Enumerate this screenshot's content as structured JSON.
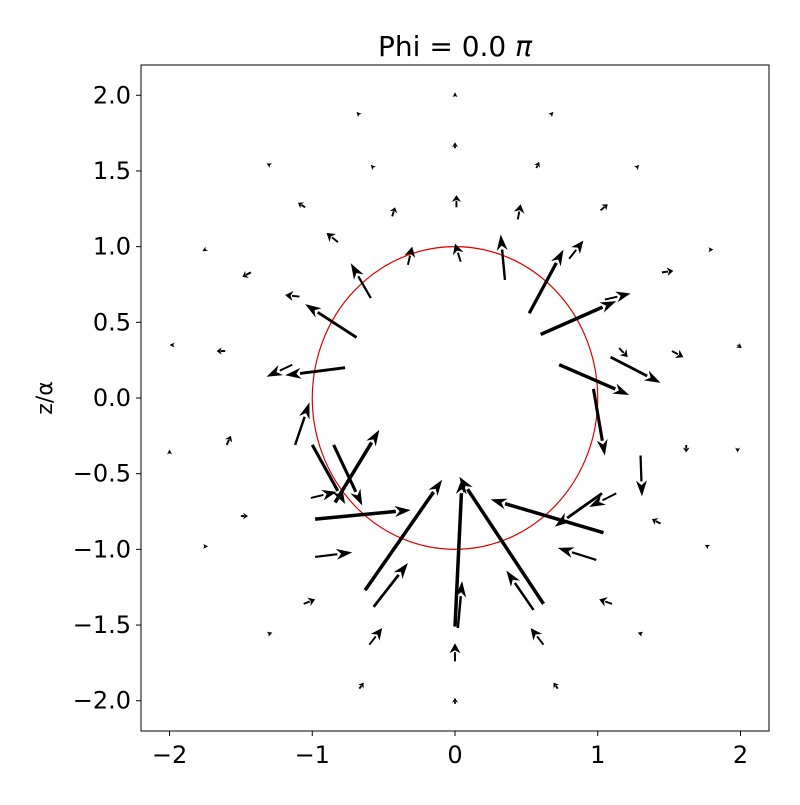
{
  "chart_data": {
    "type": "quiver",
    "title": "Phi = 0.0 ",
    "title_symbol": "π",
    "xlabel": "",
    "ylabel": "z/α",
    "xlim": [
      -2.2,
      2.2
    ],
    "ylim": [
      -2.2,
      2.2
    ],
    "xticks": [
      -2,
      -1,
      0,
      1,
      2
    ],
    "yticks": [
      -2.0,
      -1.5,
      -1.0,
      -0.5,
      0.0,
      0.5,
      1.0,
      1.5,
      2.0
    ],
    "xtick_labels": [
      "−2",
      "−1",
      "0",
      "1",
      "2"
    ],
    "ytick_labels": [
      "−2.0",
      "−1.5",
      "−1.0",
      "−0.5",
      "0.0",
      "0.5",
      "1.0",
      "1.5",
      "2.0"
    ],
    "grid": false,
    "circle": {
      "center": [
        0,
        0
      ],
      "radius": 1.0,
      "color": "#e00000"
    },
    "arrow_color": "#000000",
    "vectors": [
      {
        "x": 0.0,
        "y": -1.51,
        "u": 0.05,
        "v": 0.98
      },
      {
        "x": 0.02,
        "y": -1.52,
        "u": 0.03,
        "v": 0.31
      },
      {
        "x": 0.0,
        "y": -1.74,
        "u": 0.0,
        "v": 0.12
      },
      {
        "x": 0.0,
        "y": -2.02,
        "u": 0.0,
        "v": 0.04
      },
      {
        "x": -0.63,
        "y": -1.27,
        "u": 0.54,
        "v": 0.73
      },
      {
        "x": -0.57,
        "y": -1.38,
        "u": 0.24,
        "v": 0.29
      },
      {
        "x": 0.62,
        "y": -1.36,
        "u": -0.59,
        "v": 0.84
      },
      {
        "x": 0.55,
        "y": -1.4,
        "u": -0.19,
        "v": 0.26
      },
      {
        "x": -0.6,
        "y": -1.63,
        "u": 0.09,
        "v": 0.11
      },
      {
        "x": 0.62,
        "y": -1.63,
        "u": -0.09,
        "v": 0.11
      },
      {
        "x": -0.67,
        "y": -1.92,
        "u": 0.03,
        "v": 0.04
      },
      {
        "x": 0.72,
        "y": -1.92,
        "u": -0.03,
        "v": 0.04
      },
      {
        "x": -0.98,
        "y": -0.8,
        "u": 0.67,
        "v": 0.06
      },
      {
        "x": -0.98,
        "y": -1.05,
        "u": 0.26,
        "v": 0.03
      },
      {
        "x": 1.04,
        "y": -0.89,
        "u": -0.79,
        "v": 0.22
      },
      {
        "x": 0.99,
        "y": -1.07,
        "u": -0.27,
        "v": 0.08
      },
      {
        "x": -1.06,
        "y": -1.36,
        "u": 0.08,
        "v": 0.03
      },
      {
        "x": 1.1,
        "y": -1.36,
        "u": -0.09,
        "v": 0.03
      },
      {
        "x": -1.31,
        "y": -1.56,
        "u": 0.03,
        "v": 0.01
      },
      {
        "x": 1.31,
        "y": -1.56,
        "u": -0.03,
        "v": 0.01
      },
      {
        "x": -1.0,
        "y": -0.31,
        "u": 0.23,
        "v": -0.39
      },
      {
        "x": -1.01,
        "y": -0.66,
        "u": 0.18,
        "v": 0.04
      },
      {
        "x": -1.5,
        "y": -0.78,
        "u": 0.05,
        "v": 0.0
      },
      {
        "x": -1.75,
        "y": -0.98,
        "u": 0.02,
        "v": 0.0
      },
      {
        "x": -2.0,
        "y": -0.35,
        "u": 0.0,
        "v": 0.01
      },
      {
        "x": -1.12,
        "y": -0.31,
        "u": 0.1,
        "v": 0.28
      },
      {
        "x": -1.6,
        "y": -0.31,
        "u": 0.03,
        "v": 0.06
      },
      {
        "x": 1.03,
        "y": -0.63,
        "u": -0.33,
        "v": -0.22
      },
      {
        "x": 1.13,
        "y": -0.63,
        "u": -0.19,
        "v": -0.09
      },
      {
        "x": 1.44,
        "y": -0.83,
        "u": -0.06,
        "v": 0.03
      },
      {
        "x": 1.77,
        "y": -0.98,
        "u": -0.02,
        "v": 0.01
      },
      {
        "x": 1.3,
        "y": -0.38,
        "u": 0.01,
        "v": -0.27
      },
      {
        "x": 1.62,
        "y": -0.31,
        "u": 0.0,
        "v": -0.05
      },
      {
        "x": 1.98,
        "y": -0.35,
        "u": 0.0,
        "v": -0.01
      },
      {
        "x": -0.85,
        "y": -0.31,
        "u": 0.2,
        "v": -0.4
      },
      {
        "x": -0.84,
        "y": -0.69,
        "u": 0.31,
        "v": 0.48
      },
      {
        "x": 0.97,
        "y": 0.06,
        "u": 0.08,
        "v": -0.44
      },
      {
        "x": 0.73,
        "y": 0.22,
        "u": 0.49,
        "v": -0.2
      },
      {
        "x": 1.09,
        "y": 0.27,
        "u": 0.35,
        "v": -0.17
      },
      {
        "x": 1.15,
        "y": 0.33,
        "u": 0.06,
        "v": -0.06
      },
      {
        "x": 1.52,
        "y": 0.31,
        "u": 0.08,
        "v": -0.04
      },
      {
        "x": 1.98,
        "y": 0.35,
        "u": 0.03,
        "v": -0.02
      },
      {
        "x": -0.77,
        "y": 0.2,
        "u": -0.42,
        "v": -0.05
      },
      {
        "x": -1.14,
        "y": 0.22,
        "u": -0.18,
        "v": -0.08
      },
      {
        "x": -1.61,
        "y": 0.31,
        "u": -0.06,
        "v": 0.0
      },
      {
        "x": -1.99,
        "y": 0.35,
        "u": -0.01,
        "v": 0.0
      },
      {
        "x": -0.69,
        "y": 0.4,
        "u": -0.36,
        "v": 0.22
      },
      {
        "x": -1.09,
        "y": 0.67,
        "u": -0.1,
        "v": 0.01
      },
      {
        "x": -1.43,
        "y": 0.83,
        "u": -0.06,
        "v": -0.03
      },
      {
        "x": -1.75,
        "y": 0.98,
        "u": -0.02,
        "v": -0.01
      },
      {
        "x": 0.6,
        "y": 0.42,
        "u": 0.53,
        "v": 0.22
      },
      {
        "x": 1.05,
        "y": 0.65,
        "u": 0.18,
        "v": 0.04
      },
      {
        "x": 1.45,
        "y": 0.83,
        "u": 0.08,
        "v": 0.01
      },
      {
        "x": 1.78,
        "y": 0.98,
        "u": 0.03,
        "v": 0.0
      },
      {
        "x": -0.59,
        "y": 0.66,
        "u": -0.14,
        "v": 0.23
      },
      {
        "x": -0.82,
        "y": 1.03,
        "u": -0.08,
        "v": 0.06
      },
      {
        "x": -1.05,
        "y": 1.26,
        "u": -0.05,
        "v": 0.03
      },
      {
        "x": -1.3,
        "y": 1.54,
        "u": -0.02,
        "v": 0.01
      },
      {
        "x": 0.52,
        "y": 0.56,
        "u": 0.24,
        "v": 0.42
      },
      {
        "x": 0.8,
        "y": 0.92,
        "u": 0.1,
        "v": 0.12
      },
      {
        "x": 1.02,
        "y": 1.24,
        "u": 0.05,
        "v": 0.04
      },
      {
        "x": 1.27,
        "y": 1.52,
        "u": 0.02,
        "v": 0.02
      },
      {
        "x": -0.33,
        "y": 0.88,
        "u": 0.03,
        "v": 0.12
      },
      {
        "x": -0.44,
        "y": 1.2,
        "u": 0.02,
        "v": 0.06
      },
      {
        "x": -0.57,
        "y": 1.52,
        "u": -0.02,
        "v": 0.02
      },
      {
        "x": -0.68,
        "y": 1.88,
        "u": -0.01,
        "v": 0.01
      },
      {
        "x": 0.35,
        "y": 0.78,
        "u": -0.03,
        "v": 0.3
      },
      {
        "x": 0.44,
        "y": 1.18,
        "u": 0.02,
        "v": 0.1
      },
      {
        "x": 0.57,
        "y": 1.52,
        "u": 0.02,
        "v": 0.04
      },
      {
        "x": 0.68,
        "y": 1.88,
        "u": 0.01,
        "v": 0.01
      },
      {
        "x": 0.04,
        "y": 0.9,
        "u": -0.04,
        "v": 0.12
      },
      {
        "x": 0.01,
        "y": 1.26,
        "u": 0.0,
        "v": 0.08
      },
      {
        "x": 0.0,
        "y": 1.65,
        "u": 0.0,
        "v": 0.04
      },
      {
        "x": 0.0,
        "y": 2.0,
        "u": 0.0,
        "v": 0.02
      }
    ]
  }
}
